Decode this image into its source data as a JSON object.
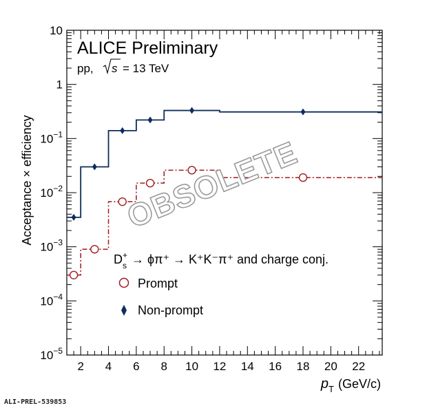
{
  "header": {
    "title": "ALICE Preliminary",
    "system": "pp,",
    "sqrt_s_label": "s",
    "energy": "= 13 TeV"
  },
  "legend": {
    "decay_particle": "D",
    "decay_sub": "s",
    "decay_sup": "+",
    "decay_chain": "→ ϕπ⁺ → K⁺K⁻π⁺ and charge conj.",
    "prompt_label": "Prompt",
    "nonprompt_label": "Non-prompt"
  },
  "watermark": "OBSOLETE",
  "footer_id": "ALI-PREL-539853",
  "colors": {
    "prompt": "#a0191d",
    "nonprompt": "#0d2d5c",
    "watermark_stroke": "#9a9a9a"
  },
  "chart_data": {
    "type": "line",
    "ylabel": "Acceptance × efficiency",
    "xlabel_symbol": "p",
    "xlabel_sub": "T",
    "xlabel_unit": "(GeV/c)",
    "x_ticks": [
      "2",
      "4",
      "6",
      "8",
      "10",
      "12",
      "14",
      "16",
      "18",
      "20",
      "22"
    ],
    "y_ticks": [
      {
        "base": "10",
        "exp": "−5"
      },
      {
        "base": "10",
        "exp": "−4"
      },
      {
        "base": "10",
        "exp": "−3"
      },
      {
        "base": "10",
        "exp": "−2"
      },
      {
        "base": "10",
        "exp": "−1"
      },
      {
        "base": "1",
        "exp": ""
      },
      {
        "base": "10",
        "exp": ""
      }
    ],
    "xlim": [
      1,
      23.7
    ],
    "ylim": [
      1e-05,
      10
    ],
    "y_scale": "log",
    "bin_edges": [
      1,
      2,
      4,
      6,
      8,
      12,
      23.7
    ],
    "series": [
      {
        "name": "Prompt",
        "style": "dash-dot",
        "marker": "open-circle",
        "x": [
          1.5,
          3,
          5,
          7,
          10,
          18
        ],
        "y": [
          0.0003,
          0.0009,
          0.0068,
          0.015,
          0.026,
          0.019
        ]
      },
      {
        "name": "Non-prompt",
        "style": "solid",
        "marker": "diamond",
        "x": [
          1.5,
          3,
          5,
          7,
          10,
          18
        ],
        "y": [
          0.0035,
          0.03,
          0.14,
          0.22,
          0.33,
          0.31
        ]
      }
    ]
  }
}
